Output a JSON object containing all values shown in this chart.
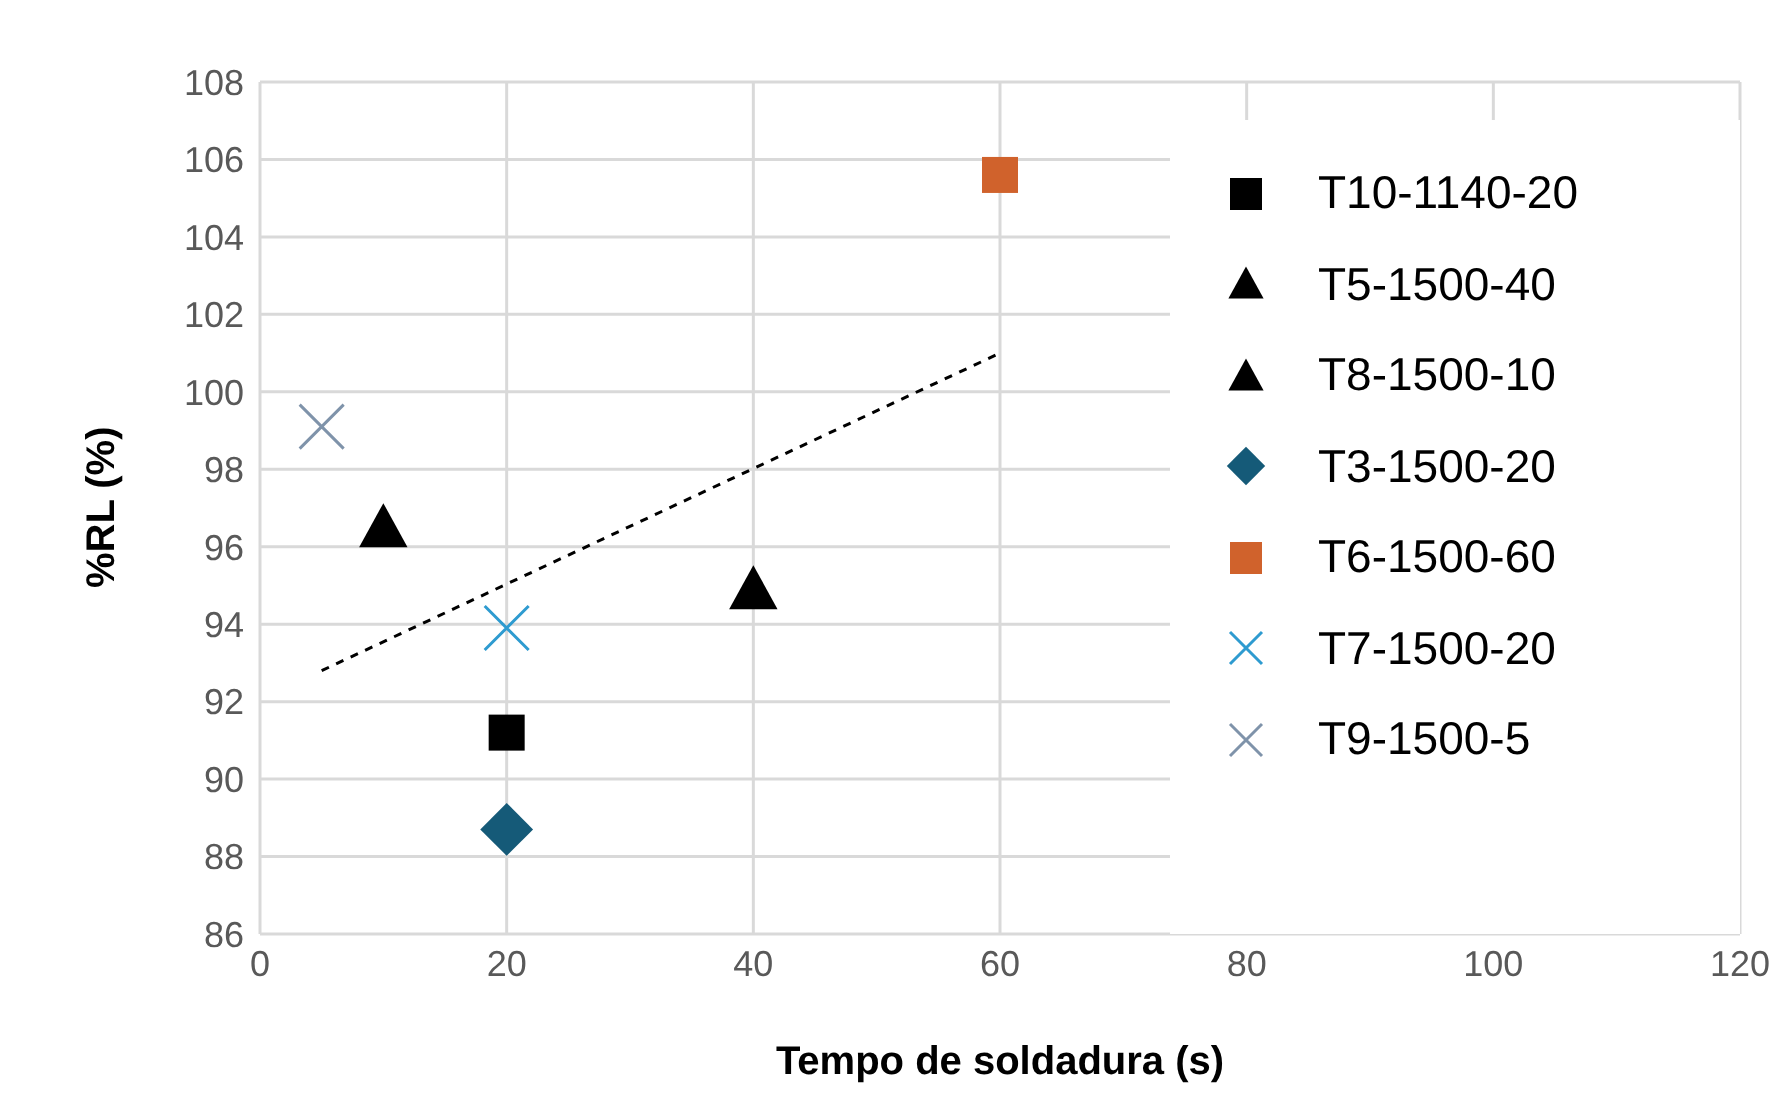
{
  "chart_data": {
    "type": "scatter",
    "xlabel": "Tempo de soldadura (s)",
    "ylabel": "%RL (%)",
    "xlim": [
      0,
      120
    ],
    "xticks": [
      0,
      20,
      40,
      60,
      80,
      100,
      120
    ],
    "ylim": [
      86,
      108
    ],
    "yticks": [
      86,
      88,
      90,
      92,
      94,
      96,
      98,
      100,
      102,
      104,
      106,
      108
    ],
    "grid": true,
    "legend": "right",
    "series": [
      {
        "name": "T10-1140-20",
        "color": "#000000",
        "marker": "square",
        "x": [
          20
        ],
        "values": [
          91.2
        ]
      },
      {
        "name": "T5-1500-40",
        "color": "#000000",
        "marker": "triangle",
        "x": [
          40
        ],
        "values": [
          94.9
        ]
      },
      {
        "name": "T8-1500-10",
        "color": "#000000",
        "marker": "triangle",
        "x": [
          10
        ],
        "values": [
          96.5
        ]
      },
      {
        "name": "T3-1500-20",
        "color": "#155a78",
        "marker": "diamond",
        "x": [
          20
        ],
        "values": [
          88.7
        ]
      },
      {
        "name": "T6-1500-60",
        "color": "#d0622c",
        "marker": "square",
        "x": [
          60
        ],
        "values": [
          105.6
        ]
      },
      {
        "name": "T7-1500-20",
        "color": "#2e9bd0",
        "marker": "cross",
        "x": [
          20
        ],
        "values": [
          93.9
        ]
      },
      {
        "name": "T9-1500-5",
        "color": "#7f93aa",
        "marker": "cross",
        "x": [
          5
        ],
        "values": [
          99.1
        ]
      },
      {
        "type": "line",
        "color": "#000000",
        "line_style": "dashed",
        "marker": "none",
        "x": [
          5,
          60
        ],
        "values": [
          92.8,
          101.0
        ]
      }
    ]
  }
}
